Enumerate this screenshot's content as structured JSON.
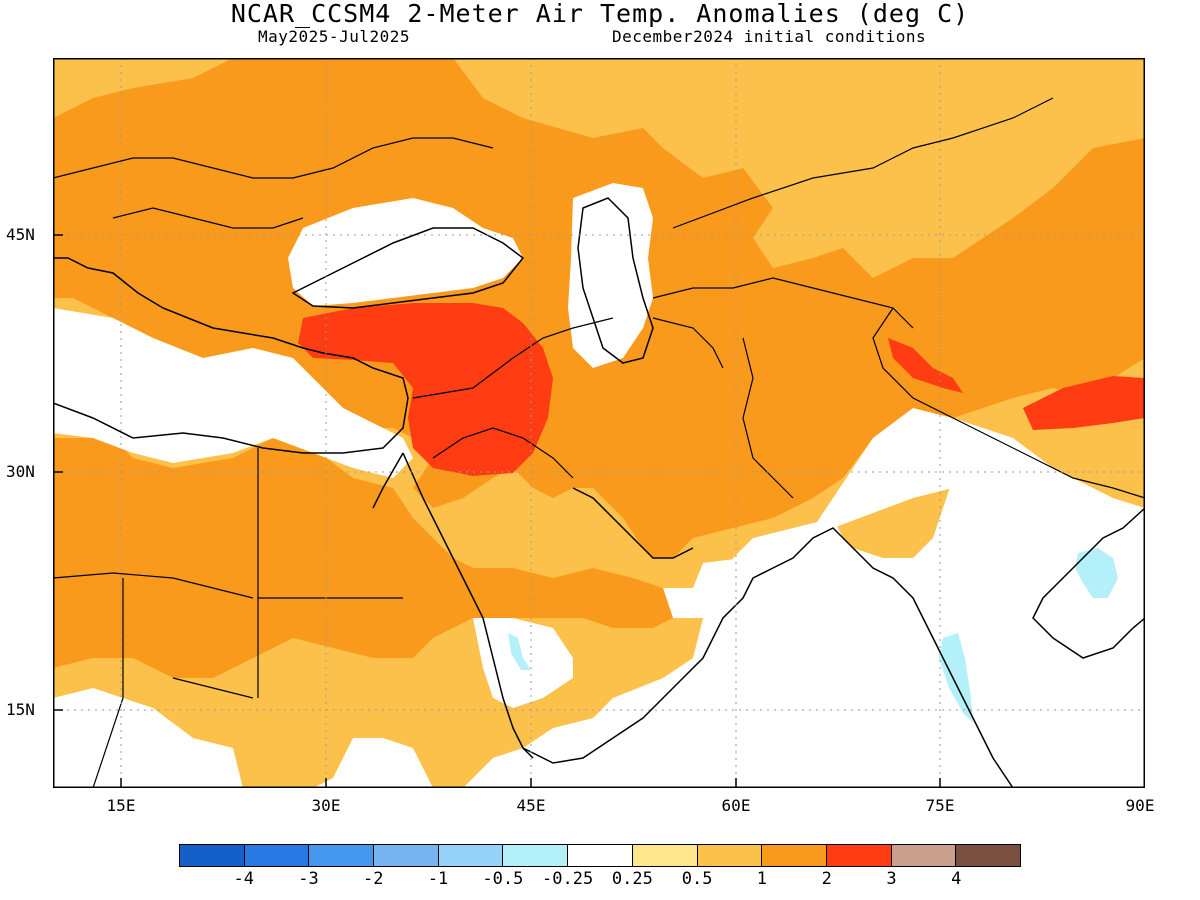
{
  "header": {
    "title": "NCAR_CCSM4 2-Meter Air Temp. Anomalies (deg C)",
    "period": "May2025-Jul2025",
    "init": "December2024 initial conditions"
  },
  "axes": {
    "lat_labels": [
      "45N",
      "30N",
      "15N"
    ],
    "lon_labels": [
      "15E",
      "30E",
      "45E",
      "60E",
      "75E",
      "90E"
    ]
  },
  "legend": {
    "colors": [
      "#1560c8",
      "#2a78e4",
      "#4596ef",
      "#78b4f2",
      "#96d2fa",
      "#b4f0fa",
      "#ffffff",
      "#fee68c",
      "#fcc14b",
      "#f99a1c",
      "#ff3c12",
      "#c9a08c",
      "#7a5140"
    ],
    "tick_labels": [
      "-4",
      "-3",
      "-2",
      "-1",
      "-0.5",
      "-0.25",
      "0.25",
      "0.5",
      "1",
      "2",
      "3",
      "4"
    ]
  },
  "map": {
    "lon_range": [
      10,
      90
    ],
    "lat_range": [
      10,
      55
    ],
    "anomaly_regions": [
      {
        "category": "1 to 2",
        "color": "#f99a1c",
        "area": "Eastern Europe, Caucasus, Central Asia, Iran, Pakistan, western China, Saudi Arabia, North Africa"
      },
      {
        "category": "2 to 3",
        "color": "#ff3c12",
        "area": "Turkey, Syria, Iraq, Kashmir, Tibet"
      },
      {
        "category": "0.5 to 1",
        "color": "#fcc14b",
        "area": "Russia, Kazakhstan, Mongolia, Libya-Egypt, Yemen-Oman"
      },
      {
        "category": "-0.5 to -0.25",
        "color": "#b4f0fa",
        "area": "Red Sea coast, central India, eastern India"
      }
    ]
  }
}
